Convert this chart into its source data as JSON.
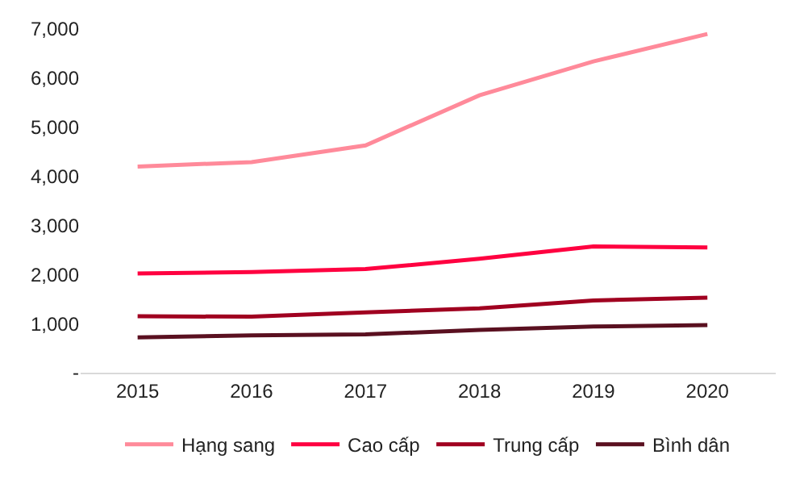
{
  "chart_data": {
    "type": "line",
    "categories": [
      "2015",
      "2016",
      "2017",
      "2018",
      "2019",
      "2020"
    ],
    "series": [
      {
        "name": "Hạng sang",
        "color": "#ff8a9a",
        "values": [
          4200,
          4290,
          4630,
          5650,
          6340,
          6900
        ]
      },
      {
        "name": "Cao cấp",
        "color": "#ff0040",
        "values": [
          2020,
          2050,
          2110,
          2320,
          2570,
          2550
        ]
      },
      {
        "name": "Trung cấp",
        "color": "#a00020",
        "values": [
          1150,
          1140,
          1230,
          1310,
          1470,
          1530
        ]
      },
      {
        "name": "Bình dân",
        "color": "#5a1020",
        "values": [
          720,
          760,
          780,
          870,
          940,
          970
        ]
      }
    ],
    "ylim": [
      0,
      7000
    ],
    "yticks": [
      {
        "value": 0,
        "label": "-"
      },
      {
        "value": 1000,
        "label": "1,000"
      },
      {
        "value": 2000,
        "label": "2,000"
      },
      {
        "value": 3000,
        "label": "3,000"
      },
      {
        "value": 4000,
        "label": "4,000"
      },
      {
        "value": 5000,
        "label": "5,000"
      },
      {
        "value": 6000,
        "label": "6,000"
      },
      {
        "value": 7000,
        "label": "7,000"
      }
    ],
    "legend": "bottom",
    "marker": "none",
    "line_style": "solid"
  }
}
